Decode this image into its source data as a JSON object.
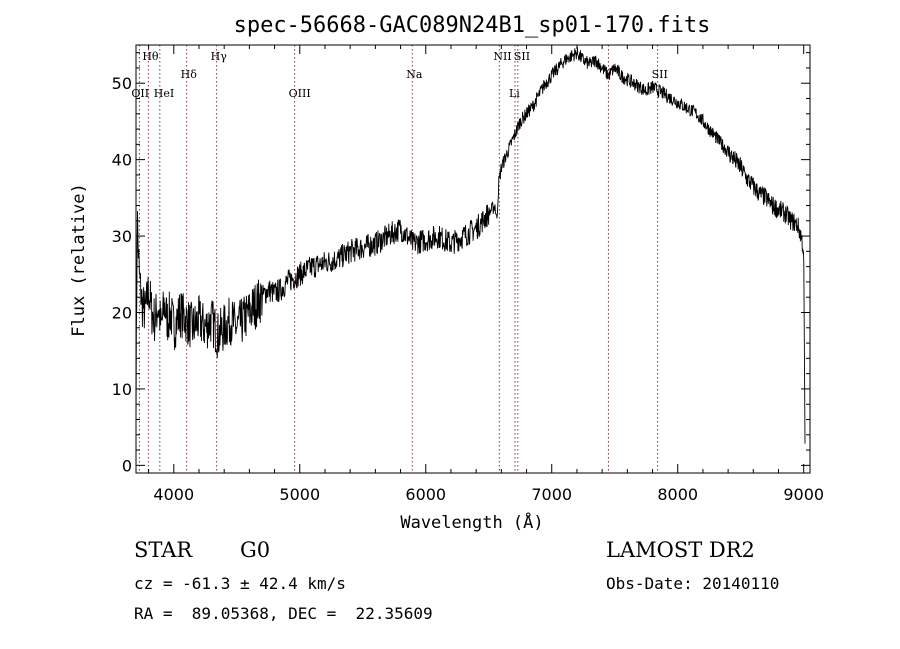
{
  "chart_data": {
    "type": "line",
    "title": "spec-56668-GAC089N24B1_sp01-170.fits",
    "xlabel": "Wavelength (Å)",
    "ylabel": "Flux (relative)",
    "xlim": [
      3700,
      9050
    ],
    "ylim": [
      -1,
      55
    ],
    "xticks": [
      4000,
      5000,
      6000,
      7000,
      8000,
      9000
    ],
    "yticks": [
      0,
      10,
      20,
      30,
      40,
      50
    ],
    "grid": false,
    "series": [
      {
        "x": [
          3700,
          3710,
          3720,
          3730,
          3750,
          3775,
          3800,
          3825,
          3850,
          3875,
          3900,
          3925,
          3950,
          3975,
          4000,
          4050,
          4100,
          4150,
          4200,
          4250,
          4300,
          4350,
          4400,
          4450,
          4500,
          4550,
          4600,
          4650,
          4700,
          4750,
          4800,
          4850,
          4900,
          4950,
          5000,
          5100,
          5200,
          5300,
          5400,
          5500,
          5600,
          5700,
          5800,
          5850,
          5900,
          6000,
          6100,
          6200,
          6300,
          6400,
          6450,
          6500,
          6550,
          6563,
          6580,
          6600,
          6650,
          6700,
          6750,
          6800,
          6850,
          6900,
          6950,
          7000,
          7050,
          7100,
          7150,
          7200,
          7250,
          7300,
          7350,
          7400,
          7450,
          7500,
          7550,
          7600,
          7650,
          7700,
          7750,
          7800,
          7850,
          7900,
          7950,
          8000,
          8050,
          8100,
          8150,
          8200,
          8250,
          8300,
          8350,
          8400,
          8450,
          8500,
          8550,
          8600,
          8650,
          8700,
          8750,
          8800,
          8850,
          8900,
          8950,
          8980,
          9000,
          9010
        ],
        "y": [
          8,
          33,
          27,
          24,
          21,
          20,
          23,
          20,
          19,
          21,
          18,
          21,
          19,
          20,
          18,
          20,
          19,
          18,
          19,
          18,
          19,
          17,
          18,
          19,
          18,
          19,
          20,
          21,
          22,
          23,
          22.5,
          23,
          24,
          24.5,
          25,
          26,
          26.5,
          27,
          28,
          28.5,
          29,
          30,
          31,
          30,
          29,
          29.5,
          30,
          29,
          30,
          31,
          32,
          33,
          34,
          32,
          37,
          39,
          41,
          43,
          45,
          46,
          47,
          48.5,
          50,
          51,
          52,
          53,
          53.5,
          54,
          53,
          52.5,
          53,
          52,
          51,
          52,
          51,
          50.5,
          50,
          49.5,
          49,
          49.5,
          49,
          48.5,
          48,
          47.5,
          47,
          46.5,
          46,
          45,
          44,
          43,
          42,
          41,
          40,
          39,
          37.5,
          36.5,
          35.5,
          35,
          34,
          33.5,
          33,
          32,
          31.5,
          30,
          28,
          3
        ]
      }
    ],
    "lines": [
      {
        "name": "Hθ",
        "x": 3798
      },
      {
        "name": "OII",
        "x": 3727
      },
      {
        "name": "HeI",
        "x": 3889
      },
      {
        "name": "Hδ",
        "x": 4102
      },
      {
        "name": "Hγ",
        "x": 4340
      },
      {
        "name": "OIII",
        "x": 4959
      },
      {
        "name": "Na",
        "x": 5893
      },
      {
        "name": "NII",
        "x": 6584
      },
      {
        "name": "Li",
        "x": 6708
      },
      {
        "name": "SII",
        "x": 6731
      },
      {
        "name": "",
        "x": 7450
      },
      {
        "name": "SII",
        "x": 7840
      }
    ]
  },
  "info": {
    "object_class": "STAR",
    "subclass": "G0",
    "survey": "LAMOST DR2",
    "cz": "cz = -61.3 ± 42.4 km/s",
    "obs_date": "Obs-Date: 20140110",
    "coords": "RA =  89.05368, DEC =  22.35609"
  }
}
